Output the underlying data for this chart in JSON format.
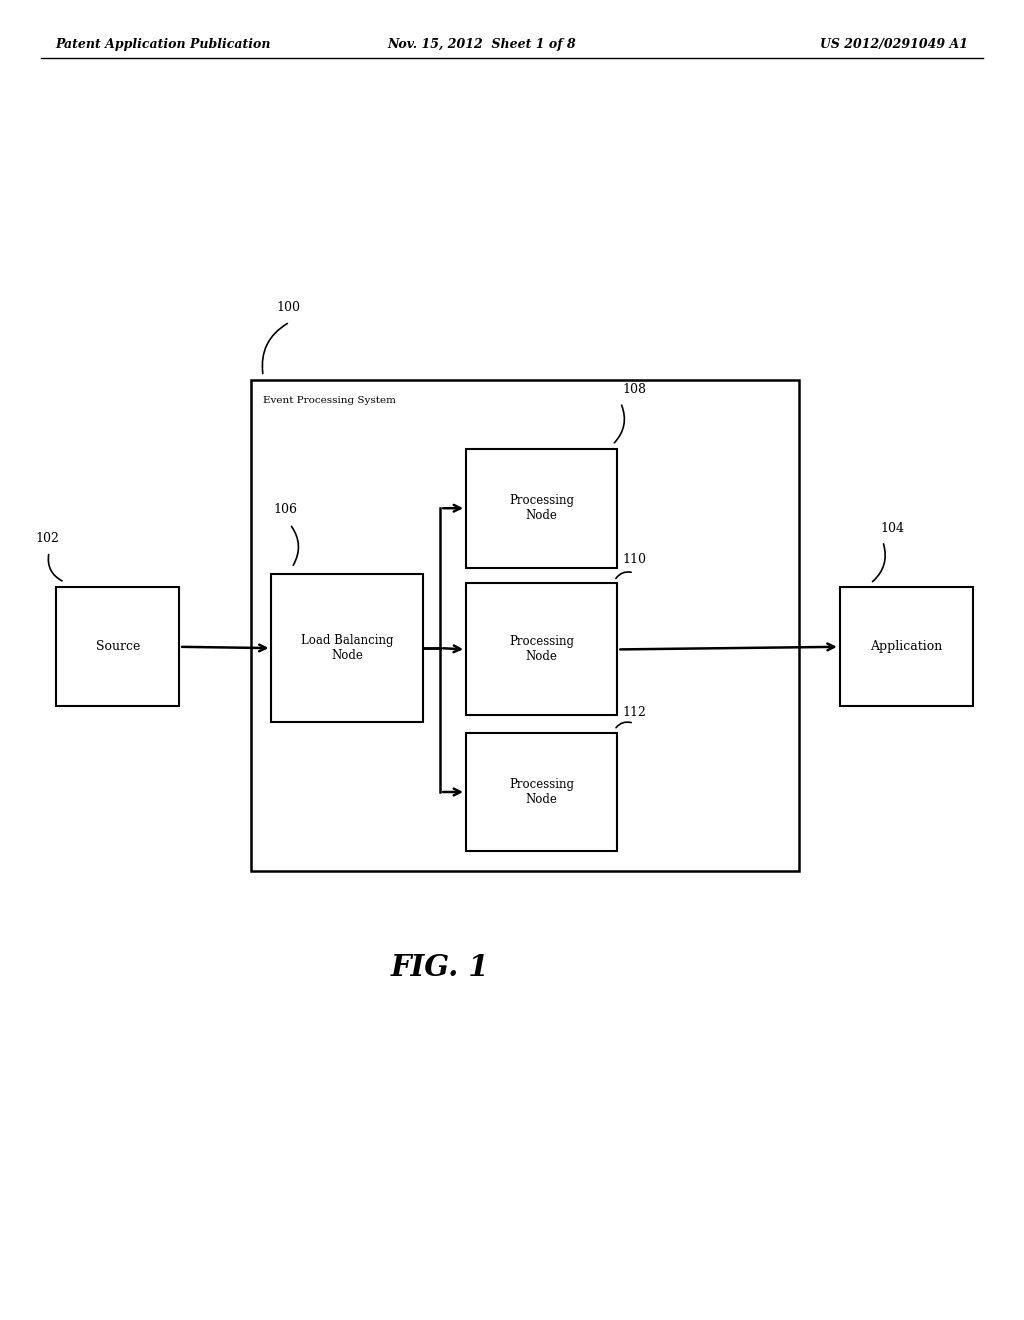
{
  "bg_color": "#ffffff",
  "header_left": "Patent Application Publication",
  "header_mid": "Nov. 15, 2012  Sheet 1 of 8",
  "header_right": "US 2012/0291049 A1",
  "fig_label": "FIG. 1",
  "outer_box_label": "Event Processing System",
  "outer_box_label_num": "100",
  "source_label": "Source",
  "source_num": "102",
  "load_balance_label": "Load Balancing\nNode",
  "load_balance_num": "106",
  "proc_node1_label": "Processing\nNode",
  "proc_node1_num": "108",
  "proc_node2_label": "Processing\nNode",
  "proc_node2_num": "110",
  "proc_node3_label": "Processing\nNode",
  "proc_node3_num": "112",
  "app_label": "Application",
  "app_num": "104"
}
